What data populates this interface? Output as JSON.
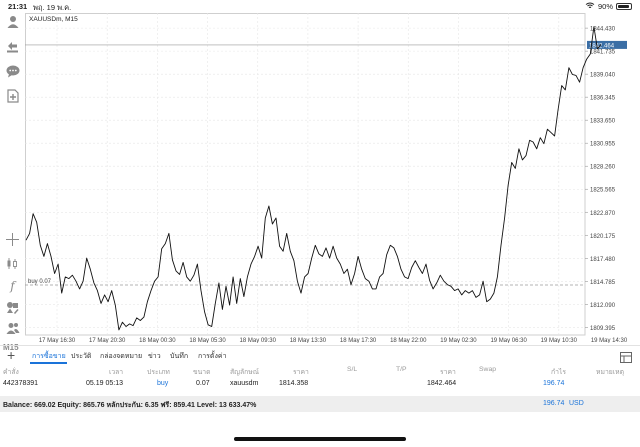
{
  "status_bar": {
    "time": "21:31",
    "date": "พฤ. 19 พ.ค.",
    "battery": "90%",
    "battery_level": 0.9
  },
  "chart": {
    "symbol_label": "XAUUSDm, M15",
    "timeframe_label": "M15",
    "current_price": "1842.464",
    "buy_line_label": "buy 0.07",
    "colors": {
      "price_line": "#111111",
      "current_price_tag": "#3a6ea5",
      "buy_line": "#9a9a9a",
      "grid": "#e6e6e6"
    }
  },
  "chart_data": {
    "type": "line",
    "symbol": "XAUUSDm",
    "timeframe": "M15",
    "y_tick_labels": [
      "1844.430",
      "1841.735",
      "1839.040",
      "1836.345",
      "1833.650",
      "1830.955",
      "1828.260",
      "1825.565",
      "1822.870",
      "1820.175",
      "1817.480",
      "1814.785",
      "1812.090",
      "1809.395"
    ],
    "x_tick_labels": [
      "17 May 16:30",
      "17 May 20:30",
      "18 May 00:30",
      "18 May 05:30",
      "18 May 09:30",
      "18 May 13:30",
      "18 May 17:30",
      "18 May 22:00",
      "19 May 02:30",
      "19 May 06:30",
      "19 May 10:30",
      "19 May 14:30"
    ],
    "ylim": [
      1808.5,
      1846.2
    ],
    "current_price": 1842.464,
    "buy_level": 1814.358,
    "series": [
      {
        "values": [
          1819.6,
          1820.4,
          1822.7,
          1821.7,
          1819.0,
          1817.7,
          1819.2,
          1817.7,
          1815.7,
          1816.8,
          1813.4,
          1815.3,
          1815.1,
          1815.5,
          1814.8,
          1813.9,
          1814.8,
          1817.5,
          1816.2,
          1814.6,
          1813.7,
          1812.2,
          1813.2,
          1812.4,
          1813.7,
          1812.0,
          1809.1,
          1810.0,
          1809.5,
          1809.8,
          1809.6,
          1810.5,
          1810.2,
          1810.6,
          1812.4,
          1813.7,
          1814.8,
          1815.3,
          1818.6,
          1819.2,
          1820.4,
          1817.3,
          1816.0,
          1815.6,
          1817.0,
          1815.3,
          1814.8,
          1815.5,
          1816.8,
          1813.7,
          1811.2,
          1809.7,
          1809.5,
          1812.2,
          1814.6,
          1811.5,
          1814.2,
          1812.0,
          1815.3,
          1812.2,
          1815.1,
          1813.0,
          1815.3,
          1816.8,
          1817.7,
          1818.9,
          1817.5,
          1822.2,
          1823.6,
          1821.5,
          1822.2,
          1818.9,
          1818.3,
          1820.4,
          1818.3,
          1817.2,
          1814.8,
          1813.4,
          1815.3,
          1815.7,
          1817.5,
          1819.0,
          1818.0,
          1817.7,
          1818.7,
          1817.5,
          1818.9,
          1817.5,
          1816.8,
          1815.7,
          1816.2,
          1814.4,
          1815.7,
          1817.7,
          1816.2,
          1815.1,
          1814.8,
          1813.9,
          1813.9,
          1815.3,
          1815.7,
          1817.9,
          1819.0,
          1818.7,
          1817.7,
          1816.2,
          1815.3,
          1815.1,
          1816.4,
          1817.2,
          1816.4,
          1815.7,
          1816.8,
          1814.9,
          1813.9,
          1814.6,
          1815.5,
          1814.8,
          1814.4,
          1814.2,
          1813.7,
          1813.9,
          1813.2,
          1813.7,
          1813.4,
          1813.7,
          1812.9,
          1813.2,
          1814.8,
          1812.4,
          1812.7,
          1813.4,
          1815.3,
          1819.0,
          1822.2,
          1826.0,
          1828.7,
          1828.0,
          1830.3,
          1829.0,
          1829.5,
          1831.3,
          1831.1,
          1830.3,
          1831.6,
          1830.9,
          1832.6,
          1832.2,
          1831.8,
          1834.9,
          1837.7,
          1837.2,
          1839.8,
          1839.0,
          1838.9,
          1838.1,
          1839.8,
          1840.8,
          1841.4,
          1844.6,
          1842.0,
          1842.5
        ]
      }
    ],
    "grid": true
  },
  "toolbox": {
    "tabs": [
      {
        "label": "การซื้อขาย",
        "active": true
      },
      {
        "label": "ประวัติ",
        "active": false
      },
      {
        "label": "กล่องจดหมาย",
        "active": false
      },
      {
        "label": "ข่าว",
        "active": false
      },
      {
        "label": "บันทึก",
        "active": false
      },
      {
        "label": "การตั้งค่า",
        "active": false
      }
    ],
    "columns": [
      "คำสั่ง",
      "เวลา",
      "ประเภท",
      "ขนาด",
      "สัญลักษณ์",
      "ราคา",
      "S/L",
      "T/P",
      "ราคา",
      "Swap",
      "กำไร",
      "หมายเหตุ"
    ],
    "order": {
      "ticket": "442378391",
      "time": "05.19 05:13",
      "type": "buy",
      "size": "0.07",
      "symbol": "xauusdm",
      "open_price": "1814.358",
      "sl": "",
      "tp": "",
      "price": "1842.464",
      "swap": "",
      "profit": "196.74",
      "comment": ""
    },
    "balance_text": "Balance: 669.02 Equity: 865.76 หลักประกัน: 6.35 ฟรี: 859.41 Level: 13 633.47%",
    "total_profit": "196.74",
    "currency": "USD"
  }
}
